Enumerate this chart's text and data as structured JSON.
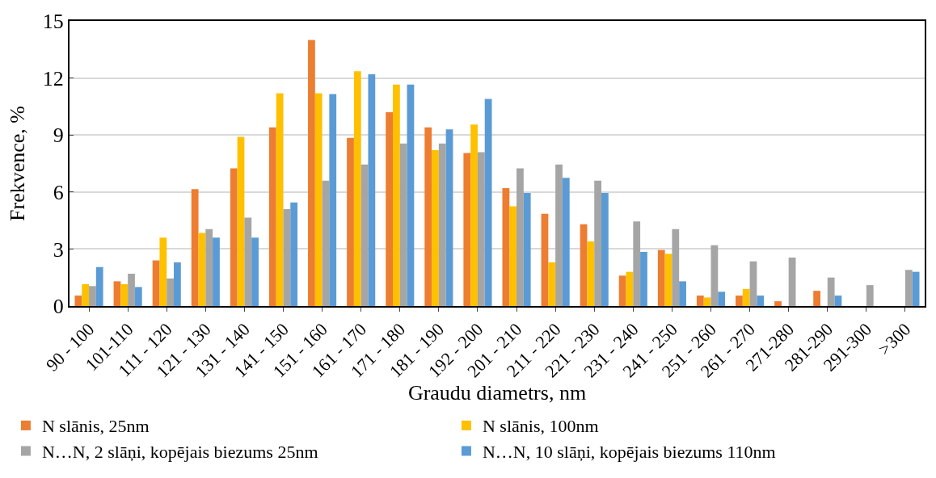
{
  "chart_data": {
    "type": "bar",
    "xlabel": "Graudu diametrs, nm",
    "ylabel": "Frekvence, %",
    "categories": [
      "90 - 100",
      "101-110",
      "111 - 120",
      "121 - 130",
      "131 - 140",
      "141 - 150",
      "151 - 160",
      "161 - 170",
      "171 - 180",
      "181 - 190",
      "192 - 200",
      "201 - 210",
      "211 - 220",
      "221 - 230",
      "231 - 240",
      "241 - 250",
      "251 - 260",
      "261 - 270",
      "271-280",
      "281-290",
      "291-300",
      ">300"
    ],
    "series": [
      {
        "name": "N slānis, 25nm",
        "color": "#ed7d31",
        "values": [
          0.55,
          1.3,
          2.4,
          6.15,
          7.25,
          9.4,
          14.0,
          8.85,
          10.2,
          9.4,
          8.05,
          6.2,
          4.85,
          4.3,
          1.6,
          2.95,
          0.55,
          0.55,
          0.25,
          0.8,
          null,
          null
        ]
      },
      {
        "name": "N slānis, 100nm",
        "color": "#ffc000",
        "values": [
          1.15,
          1.15,
          3.6,
          3.85,
          8.9,
          11.2,
          11.2,
          12.35,
          11.65,
          8.2,
          9.55,
          5.25,
          2.3,
          3.4,
          1.8,
          2.75,
          0.45,
          0.9,
          null,
          null,
          null,
          null
        ]
      },
      {
        "name": "N…N, 2 slāņi, kopējais biezums 25nm",
        "color": "#a5a5a5",
        "values": [
          1.05,
          1.7,
          1.45,
          4.05,
          4.65,
          5.1,
          6.6,
          7.45,
          8.55,
          8.55,
          8.1,
          7.25,
          7.45,
          6.6,
          4.45,
          4.05,
          3.2,
          2.35,
          2.55,
          1.5,
          1.1,
          1.9
        ]
      },
      {
        "name": "N…N, 10 slāņi, kopējais biezums 110nm",
        "color": "#5b9bd5",
        "values": [
          2.05,
          1.0,
          2.3,
          3.6,
          3.6,
          5.45,
          11.15,
          12.2,
          11.65,
          9.3,
          10.9,
          5.95,
          6.75,
          5.95,
          2.85,
          1.3,
          0.75,
          0.55,
          null,
          0.55,
          null,
          1.8
        ]
      }
    ],
    "ylim": [
      0,
      15
    ],
    "yticks": [
      0,
      3,
      6,
      9,
      12,
      15
    ],
    "grid": "y",
    "legend": "bottom"
  }
}
